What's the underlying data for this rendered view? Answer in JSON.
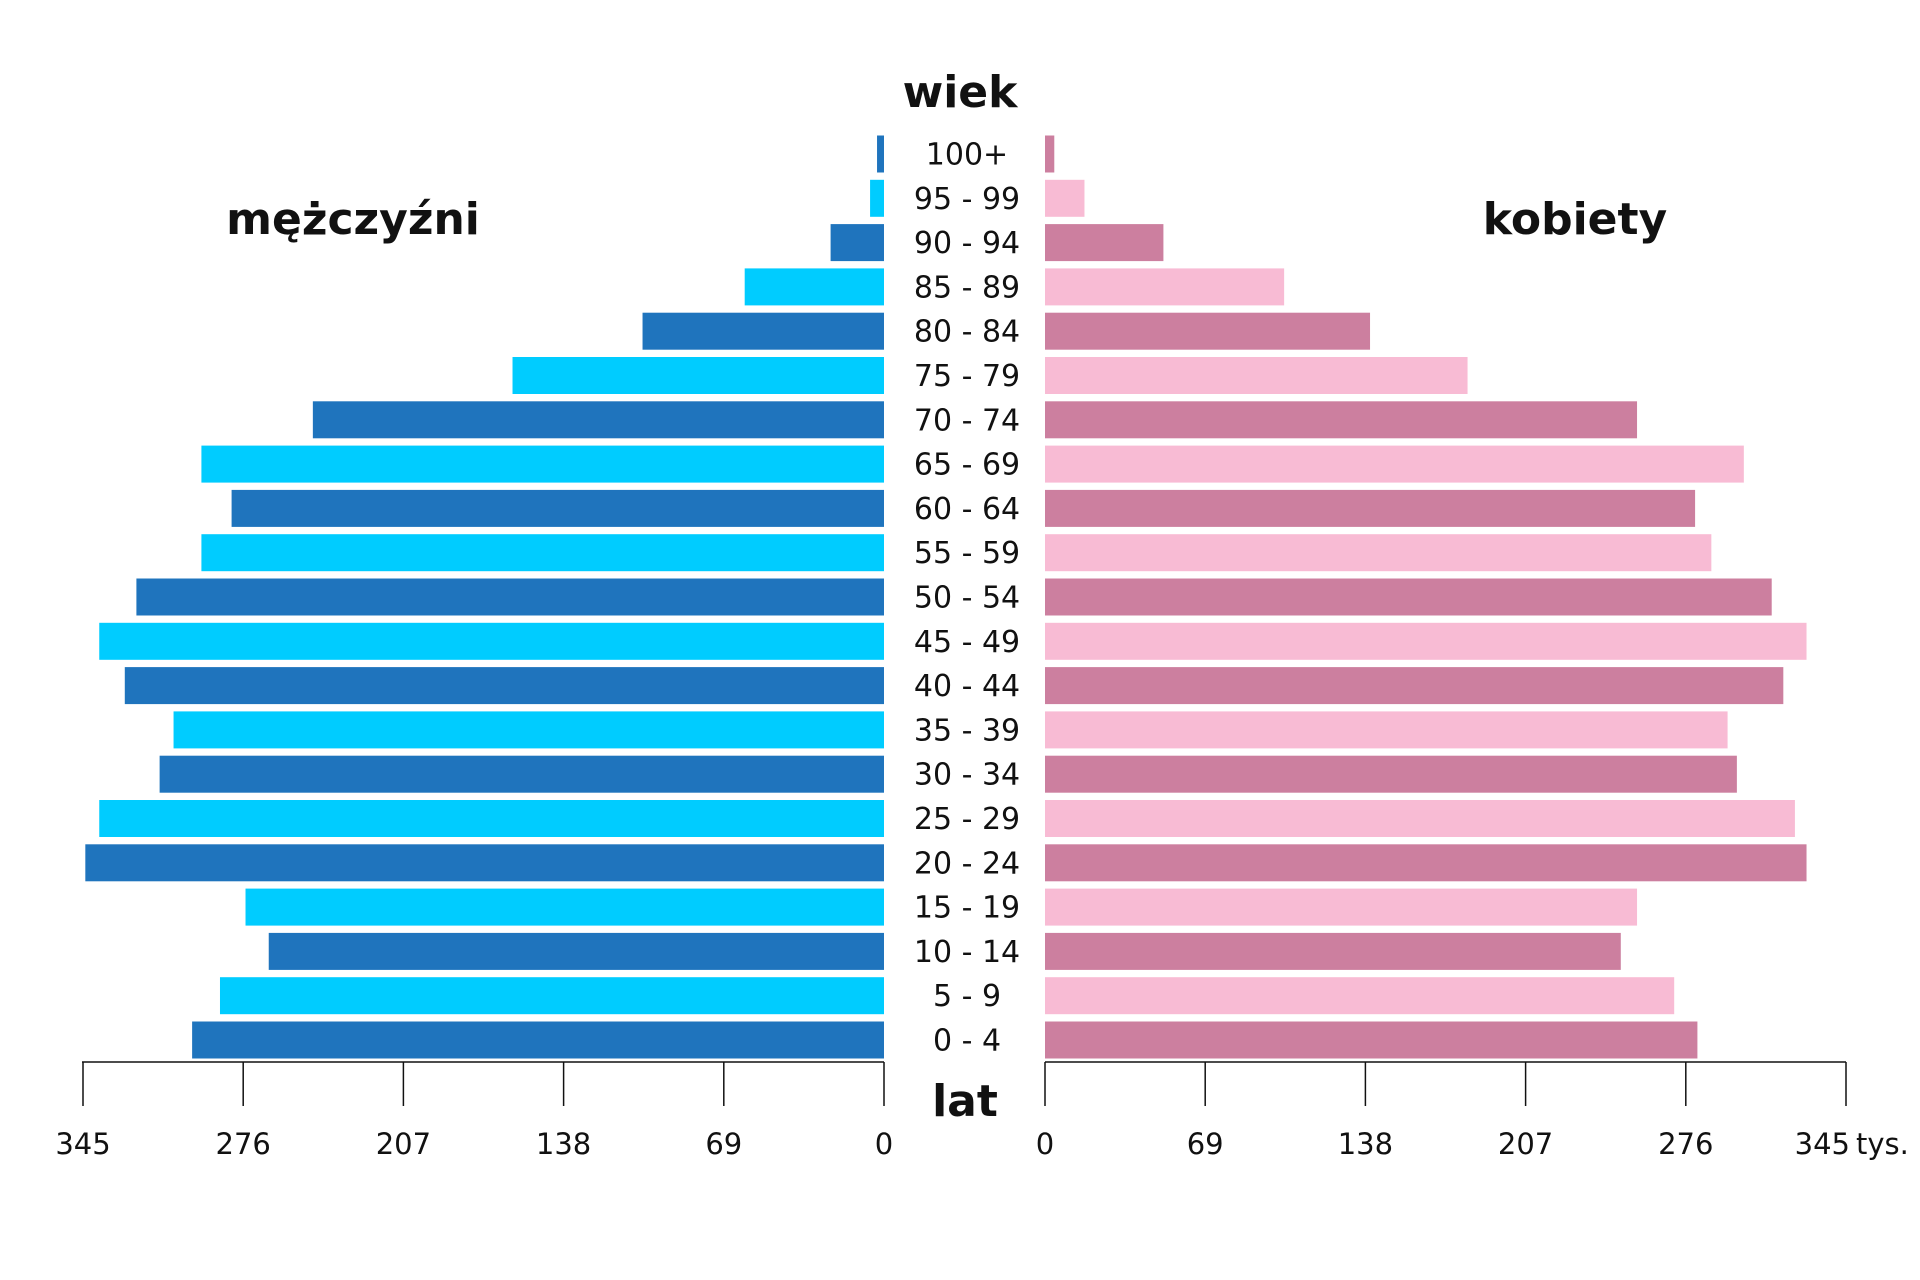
{
  "chart_data": {
    "type": "pyramid",
    "y_title": "wiek",
    "y_unit": "lat",
    "x_unit": "tys.",
    "categories": [
      "100+",
      "95 - 99",
      "90 - 94",
      "85 - 89",
      "80 - 84",
      "75 - 79",
      "70 - 74",
      "65 - 69",
      "60 - 64",
      "55 - 59",
      "50 - 54",
      "45 - 49",
      "40 - 44",
      "35 - 39",
      "30 - 34",
      "25 - 29",
      "20 - 24",
      "15 - 19",
      "10 - 14",
      "5 - 9",
      "0 - 4"
    ],
    "series": [
      {
        "name": "mężczyźni",
        "side": "left",
        "colors": [
          "#1f74bd",
          "#00ccff"
        ],
        "values": [
          3,
          6,
          23,
          60,
          104,
          160,
          246,
          294,
          281,
          294,
          322,
          338,
          327,
          306,
          312,
          338,
          344,
          275,
          265,
          286,
          298
        ]
      },
      {
        "name": "kobiety",
        "side": "right",
        "colors": [
          "#cc7f9f",
          "#f8bbd4"
        ],
        "values": [
          4,
          17,
          51,
          103,
          140,
          182,
          255,
          301,
          280,
          287,
          313,
          328,
          318,
          294,
          298,
          323,
          328,
          255,
          248,
          271,
          281
        ]
      }
    ],
    "xlim": [
      0,
      345
    ],
    "xticks": [
      0,
      69,
      138,
      207,
      276,
      345
    ]
  }
}
